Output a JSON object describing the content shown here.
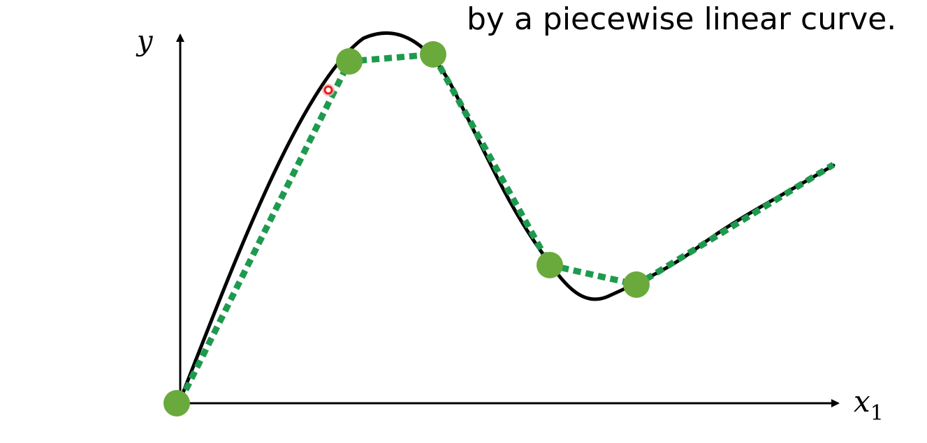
{
  "caption": "by a piecewise linear curve.",
  "axes": {
    "y_label": "y",
    "x_label": "x",
    "x_subscript": "1"
  },
  "colors": {
    "curve": "#000000",
    "approximation": "#1e9a4e",
    "points": "#6aaa3c",
    "cursor": "#e0201c"
  },
  "icons": {
    "cursor": "red-circle-cursor"
  }
}
